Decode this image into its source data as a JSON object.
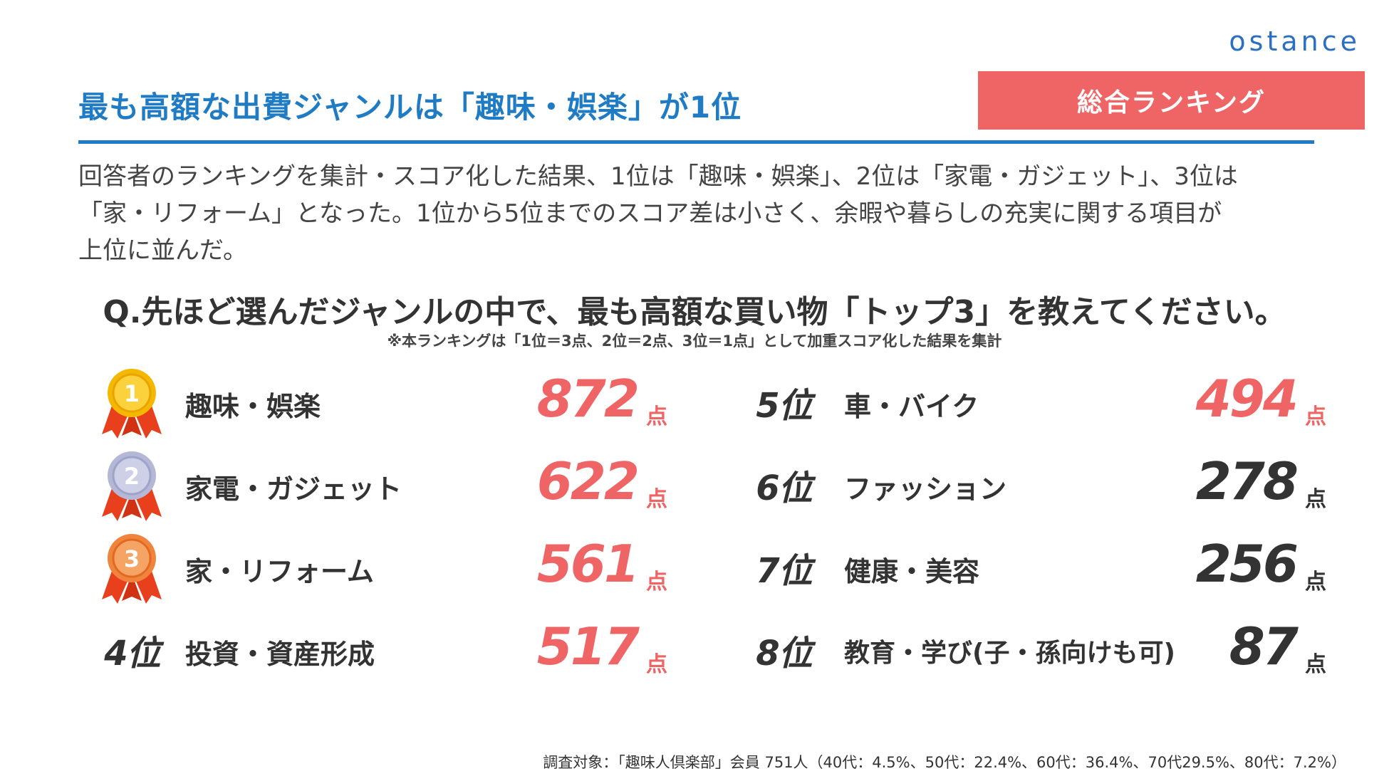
{
  "brand": {
    "logo_text": "ostance"
  },
  "header": {
    "title": "最も高額な出費ジャンルは「趣味・娯楽」が1位",
    "badge": "総合ランキング"
  },
  "lead": {
    "line1": "回答者のランキングを集計・スコア化した結果、1位は「趣味・娯楽」、2位は「家電・ガジェット」、3位は",
    "line2": "「家・リフォーム」となった。1位から5位までのスコア差は小さく、余暇や暮らしの充実に関する項目が",
    "line3": "上位に並んだ。"
  },
  "question": {
    "text": "Q.先ほど選んだジャンルの中で、最も高額な買い物「トップ3」を教えてください。",
    "note": "※本ランキングは「1位＝3点、2位＝2点、3位＝1点」として加重スコア化した結果を集計"
  },
  "ranking": {
    "unit": "点",
    "colors": {
      "highlight": "#ef6464",
      "normal": "#333333",
      "gold": "#f5b800",
      "silver": "#b4b8d6",
      "bronze": "#f0843c",
      "ribbon": "#e8401c"
    },
    "left": [
      {
        "rank_label": "1",
        "medal": "gold-medal-icon",
        "genre": "趣味・娯楽",
        "score": "872"
      },
      {
        "rank_label": "2",
        "medal": "silver-medal-icon",
        "genre": "家電・ガジェット",
        "score": "622"
      },
      {
        "rank_label": "3",
        "medal": "bronze-medal-icon",
        "genre": "家・リフォーム",
        "score": "561"
      },
      {
        "rank_label": "4位",
        "genre": "投資・資産形成",
        "score": "517"
      }
    ],
    "right": [
      {
        "rank_label": "5位",
        "genre": "車・バイク",
        "score": "494"
      },
      {
        "rank_label": "6位",
        "genre": "ファッション",
        "score": "278"
      },
      {
        "rank_label": "7位",
        "genre": "健康・美容",
        "score": "256"
      },
      {
        "rank_label": "8位",
        "genre": "教育・学び(子・孫向けも可)",
        "score": "87"
      }
    ]
  },
  "footer": {
    "survey": "調査対象：「趣味人倶楽部」会員 751人（40代：4.5%、50代：22.4%、60代：36.4%、70代29.5%、80代：7.2%）"
  }
}
